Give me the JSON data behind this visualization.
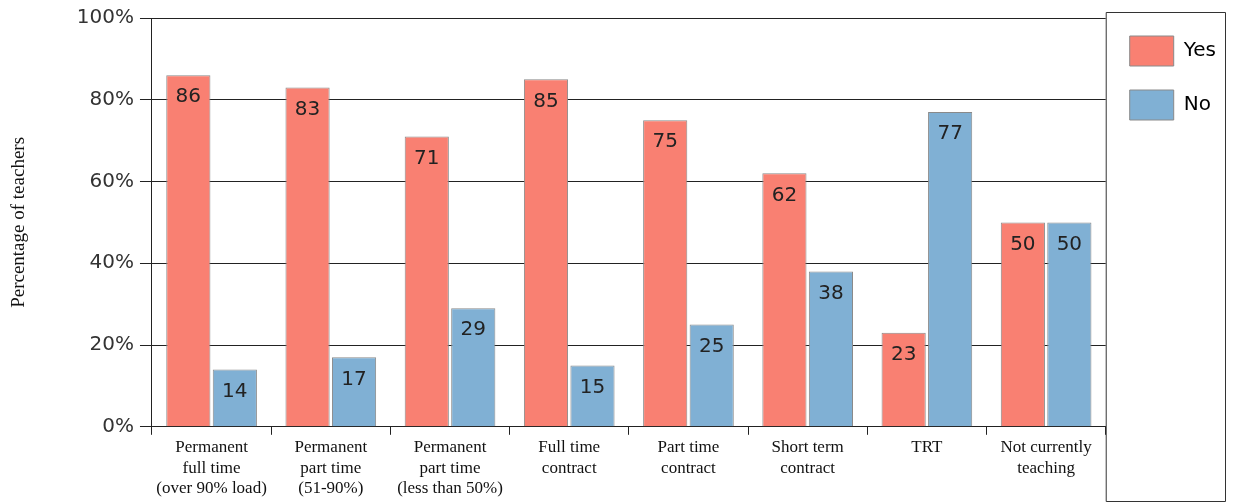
{
  "chart_data": {
    "type": "bar",
    "ylabel": "Percentage of teachers",
    "categories": [
      "Permanent full time (over 90% load)",
      "Permanent part time (51-90%)",
      "Permanent part time (less than 50%)",
      "Full time contract",
      "Part time contract",
      "Short term contract",
      "TRT",
      "Not currently teaching"
    ],
    "series": [
      {
        "name": "Yes",
        "color": "#f98072",
        "values": [
          86,
          83,
          71,
          85,
          75,
          62,
          23,
          50
        ]
      },
      {
        "name": "No",
        "color": "#80b0d4",
        "values": [
          14,
          17,
          29,
          15,
          25,
          38,
          77,
          50
        ]
      }
    ],
    "ylim": [
      0,
      100
    ],
    "yticks": [
      {
        "value": 0,
        "label": "0%"
      },
      {
        "value": 20,
        "label": "20%"
      },
      {
        "value": 40,
        "label": "40%"
      },
      {
        "value": 60,
        "label": "60%"
      },
      {
        "value": 80,
        "label": "80%"
      },
      {
        "value": 100,
        "label": "100%"
      }
    ],
    "grid": "y",
    "legend": "top right",
    "data_labels": true
  }
}
